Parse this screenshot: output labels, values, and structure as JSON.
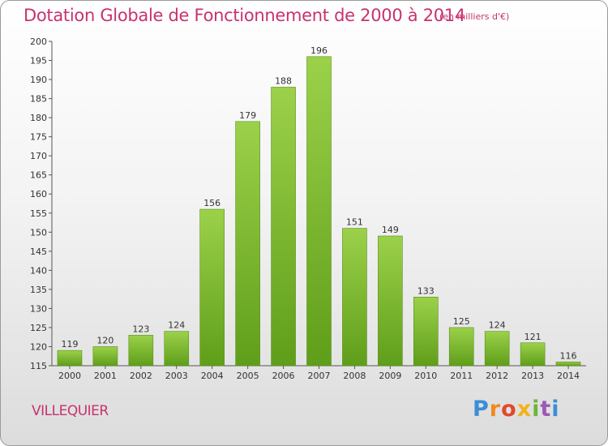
{
  "header": {
    "title": "Dotation Globale de Fonctionnement de 2000 à 2014",
    "subtitle": "(en milliers d'€)"
  },
  "footer": {
    "commune": "VILLEQUIER",
    "logo_text": "Proxiti"
  },
  "colors": {
    "title": "#c8326e",
    "bar_light": "#9cd14a",
    "bar_dark": "#5f9e1a"
  },
  "chart_data": {
    "type": "bar",
    "title": "Dotation Globale de Fonctionnement de 2000 à 2014",
    "subtitle": "(en milliers d'€)",
    "xlabel": "",
    "ylabel": "",
    "categories": [
      "2000",
      "2001",
      "2002",
      "2003",
      "2004",
      "2005",
      "2006",
      "2007",
      "2008",
      "2009",
      "2010",
      "2011",
      "2012",
      "2013",
      "2014"
    ],
    "values": [
      119,
      120,
      123,
      124,
      156,
      179,
      188,
      196,
      151,
      149,
      133,
      125,
      124,
      121,
      116
    ],
    "ylim": [
      115,
      200
    ],
    "yticks": [
      115,
      120,
      125,
      130,
      135,
      140,
      145,
      150,
      155,
      160,
      165,
      170,
      175,
      180,
      185,
      190,
      195,
      200
    ],
    "grid": false,
    "data_labels": true
  }
}
